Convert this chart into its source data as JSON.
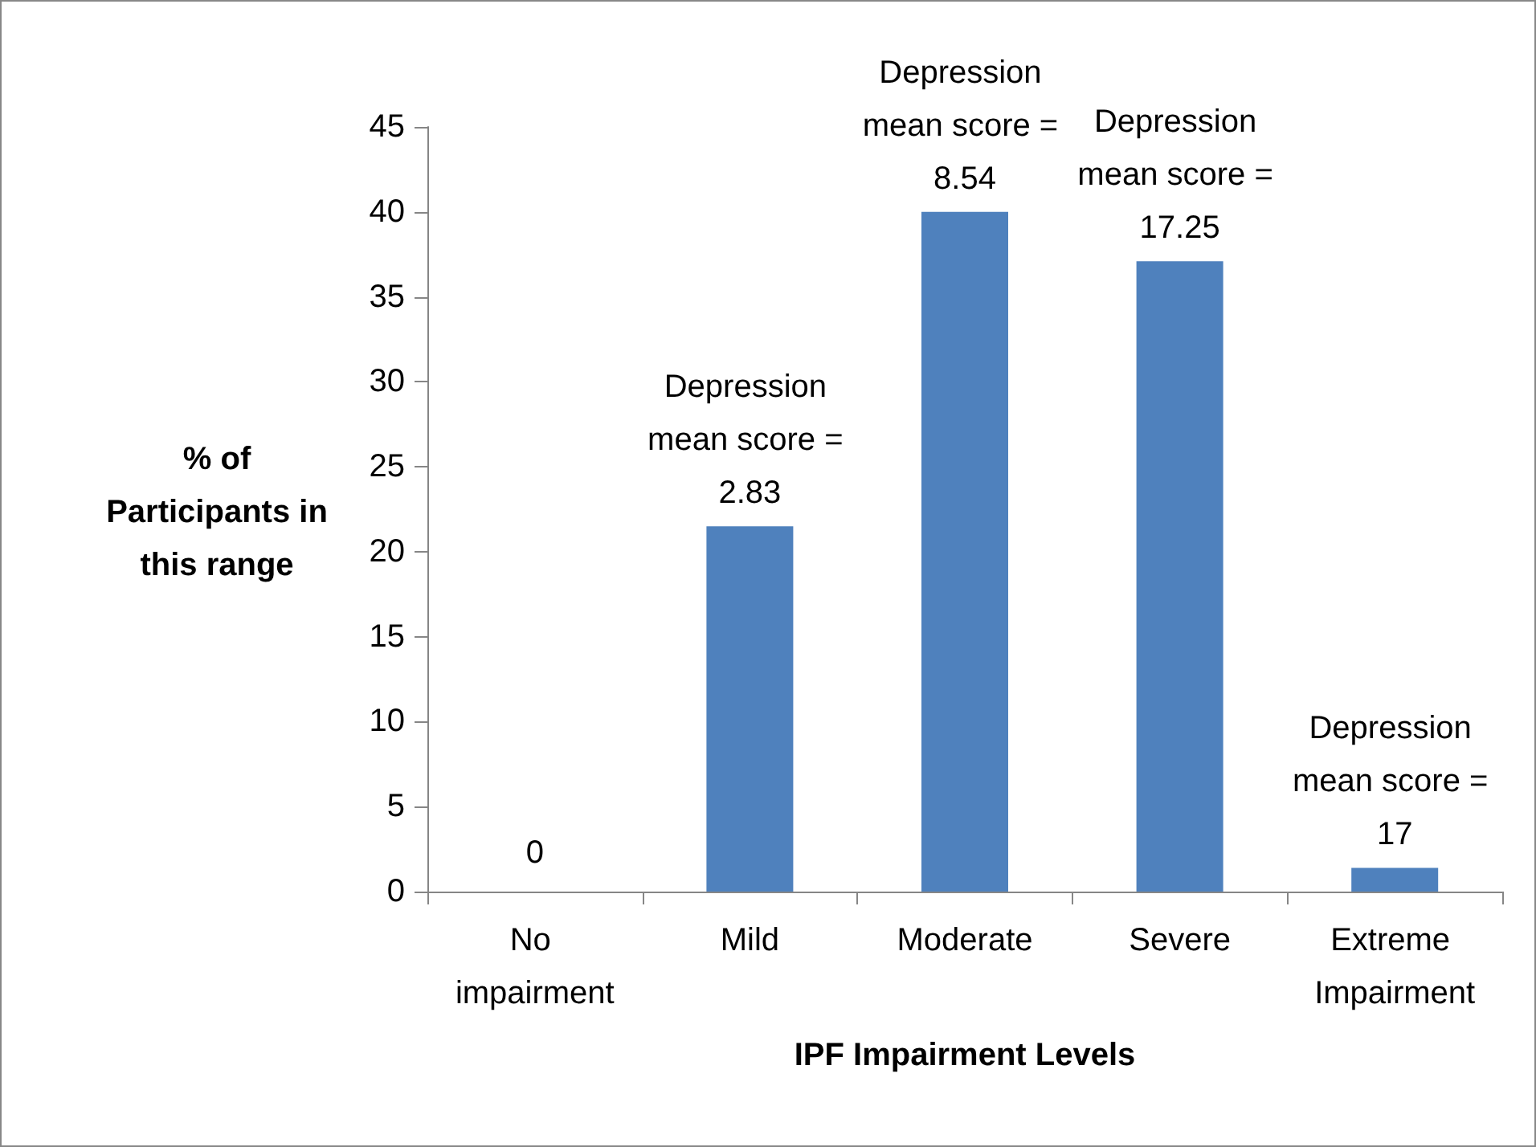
{
  "chart_data": {
    "type": "bar",
    "xlabel": "IPF Impairment Levels",
    "ylabel": "% of Participants in this range",
    "categories": [
      "No impairment",
      "Mild",
      "Moderate",
      "Severe",
      "Extreme Impairment"
    ],
    "values": [
      0,
      21.5,
      40,
      37.1,
      1.4
    ],
    "color": "#4f81bd",
    "value_labels": [
      "0",
      null,
      null,
      null,
      null
    ],
    "annotations": [
      {
        "text": "Depression mean score = 2.83",
        "x": "Mild",
        "y": 21.5
      },
      {
        "text": "Depression mean score = 8.54",
        "x": "Moderate",
        "y": 40
      },
      {
        "text": "Depression mean score = 17.25",
        "x": "Severe",
        "y": 37.1
      },
      {
        "text": "Depression mean score = 17",
        "x": "Extreme Impairment",
        "y": 1.4
      }
    ],
    "ylim": [
      0,
      45
    ],
    "yticks": [
      0,
      5,
      10,
      15,
      20,
      25,
      30,
      35,
      40,
      45
    ],
    "grid": false
  }
}
